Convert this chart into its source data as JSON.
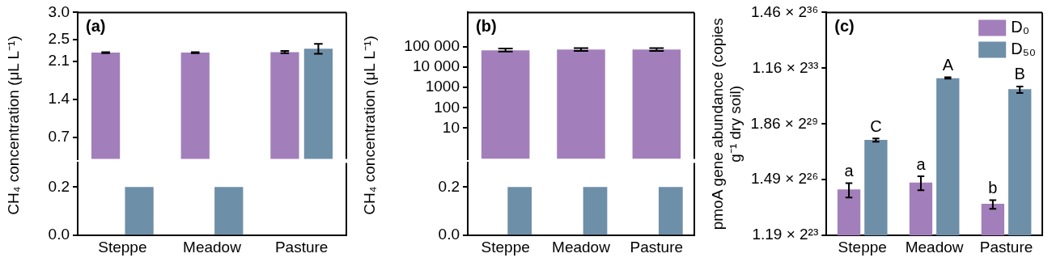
{
  "chart_data": [
    {
      "type": "bar",
      "title": "(a)",
      "ylabel": "CH₄ concentration (μL L⁻¹)",
      "categories": [
        null,
        null,
        null
      ],
      "series": [
        {
          "color": "#a27fba",
          "values": [
            2.26,
            2.26,
            2.27
          ],
          "errors": [
            0.01,
            0.01,
            0.02
          ]
        },
        {
          "color": "#6e8fa8",
          "values": [
            null,
            null,
            2.33
          ],
          "errors": [
            null,
            null,
            [
              2.24,
              2.42
            ]
          ]
        }
      ],
      "ylim": [
        0.3,
        3
      ],
      "yticks": [
        0.7,
        1.4,
        2.1,
        2.5,
        {
          "value": 3,
          "label": "3.0"
        }
      ],
      "tick_labels": "y",
      "grid": false,
      "legend": false
    },
    {
      "type": "bar",
      "categories": [
        "Steppe",
        "Meadow",
        "Pasture"
      ],
      "series": [
        {
          "color": "#a27fba",
          "values": [
            null,
            null,
            null
          ]
        },
        {
          "color": "#6e8fa8",
          "values": [
            0.2,
            0.2,
            null
          ]
        }
      ],
      "ylim": [
        0,
        0.3
      ],
      "yticks": [
        {
          "value": 0,
          "label": "0.0"
        },
        0.2
      ],
      "grid": false,
      "legend": false
    },
    {
      "type": "bar",
      "title": "(b)",
      "ylabel": "CH₄ concentration (μL L⁻¹)",
      "categories": [
        null,
        null,
        null
      ],
      "series": [
        {
          "color": "#a27fba",
          "values": [
            68000,
            74000,
            74000
          ],
          "errors": [
            [
              59000,
              83000
            ],
            [
              63000,
              87000
            ],
            [
              63000,
              87000
            ]
          ]
        }
      ],
      "ylim": [
        0.3,
        5000000
      ],
      "yticks": [
        10,
        100,
        1000,
        {
          "value": 10000,
          "label": "10 000"
        },
        {
          "value": 100000,
          "label": "100 000"
        }
      ],
      "log": true,
      "tick_labels": "y",
      "grid": false,
      "legend": false
    },
    {
      "type": "bar",
      "categories": [
        "Steppe",
        "Meadow",
        "Pasture"
      ],
      "series": [
        {
          "color": "#a27fba",
          "values": [
            null,
            null,
            null
          ]
        },
        {
          "color": "#6e8fa8",
          "values": [
            0.2,
            0.2,
            0.2
          ]
        }
      ],
      "ylim": [
        0,
        0.3
      ],
      "yticks": [
        {
          "value": 0,
          "label": "0.0"
        },
        0.2
      ],
      "grid": false,
      "legend": false
    },
    {
      "type": "bar",
      "title": "(c)",
      "ylabel": "pmoA gene abundance (copies g⁻¹ dry soil)",
      "categories": [
        "Steppe",
        "Meadow",
        "Pasture"
      ],
      "series": [
        {
          "name": "D₀",
          "color": "#a27fba",
          "values": [
            67000000,
            89000000,
            37000000
          ],
          "errors": [
            [
              48000000,
              87000000
            ],
            [
              65000000,
              115000000
            ],
            [
              30000000,
              43000000
            ]
          ]
        },
        {
          "name": "D₅₀",
          "color": "#6e8fa8",
          "values": [
            520000000,
            6600000000,
            4200000000
          ],
          "errors": [
            [
              480000000,
              550000000
            ],
            [
              6500000000,
              6900000000
            ],
            [
              3600000000,
              4700000000
            ]
          ]
        }
      ],
      "ylim": [
        10000000,
        100000000000
      ],
      "yticks": [
        {
          "value": 10000000,
          "label": "1.19 × 2²³"
        },
        {
          "value": 100000000,
          "label": "1.49 × 2²⁶"
        },
        {
          "value": 1000000000,
          "label": "1.86 × 2²⁹"
        },
        {
          "value": 10000000000,
          "label": "1.16 × 2³³"
        },
        {
          "value": 100000000000,
          "label": "1.46 × 2³⁶"
        }
      ],
      "log": true,
      "grid": false,
      "legend": "top right",
      "annotations": [
        {
          "text": "a",
          "x": "Steppe",
          "y": 87000000
        },
        {
          "text": "C",
          "x": "Steppe",
          "y": 550000000
        },
        {
          "text": "a",
          "x": "Meadow",
          "y": 115000000
        },
        {
          "text": "A",
          "x": "Meadow",
          "y": 6900000000
        },
        {
          "text": "b",
          "x": "Pasture",
          "y": 43000000
        },
        {
          "text": "B",
          "x": "Pasture",
          "y": 4700000000
        }
      ]
    }
  ]
}
